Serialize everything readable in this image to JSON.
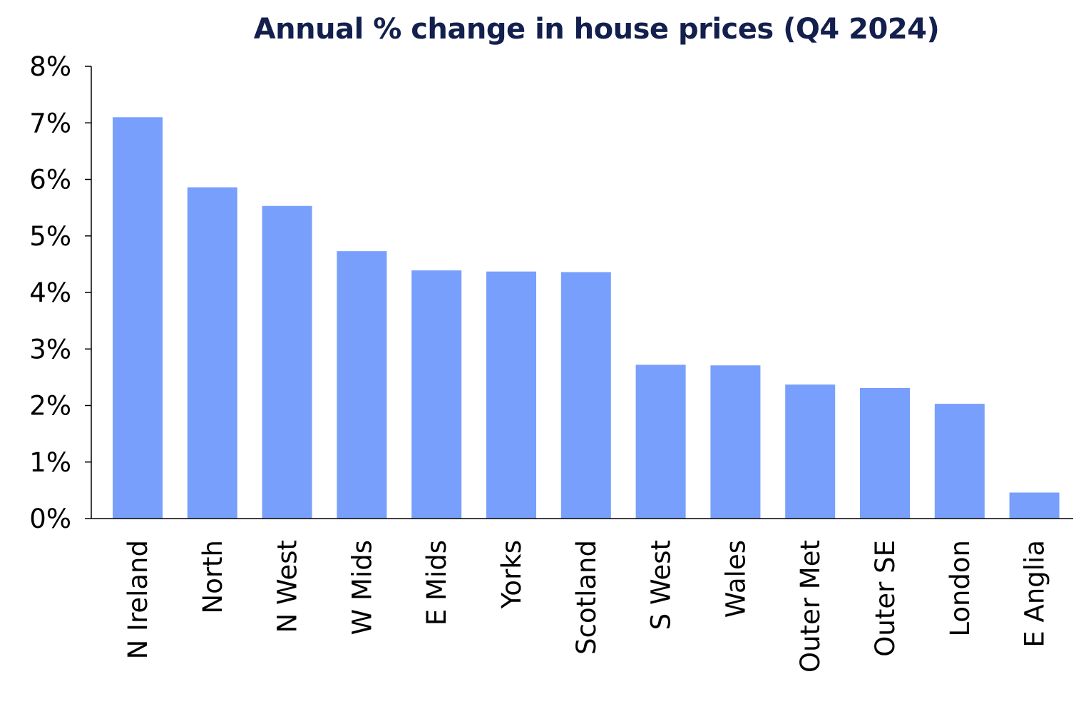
{
  "chart_data": {
    "type": "bar",
    "title": "Annual % change in house prices (Q4 2024)",
    "xlabel": "",
    "ylabel": "",
    "categories": [
      "N Ireland",
      "North",
      "N West",
      "W Mids",
      "E Mids",
      "Yorks",
      "Scotland",
      "S West",
      "Wales",
      "Outer Met",
      "Outer SE",
      "London",
      "E Anglia"
    ],
    "values": [
      7.1,
      5.86,
      5.53,
      4.73,
      4.39,
      4.37,
      4.36,
      2.72,
      2.71,
      2.37,
      2.31,
      2.03,
      0.46
    ],
    "ylim": [
      0,
      8
    ],
    "yticks": [
      0,
      1,
      2,
      3,
      4,
      5,
      6,
      7,
      8
    ],
    "ytick_labels": [
      "0%",
      "1%",
      "2%",
      "3%",
      "4%",
      "5%",
      "6%",
      "7%",
      "8%"
    ],
    "grid": false,
    "legend": "none",
    "bar_color": "#789ffc",
    "title_color": "#13204d"
  }
}
